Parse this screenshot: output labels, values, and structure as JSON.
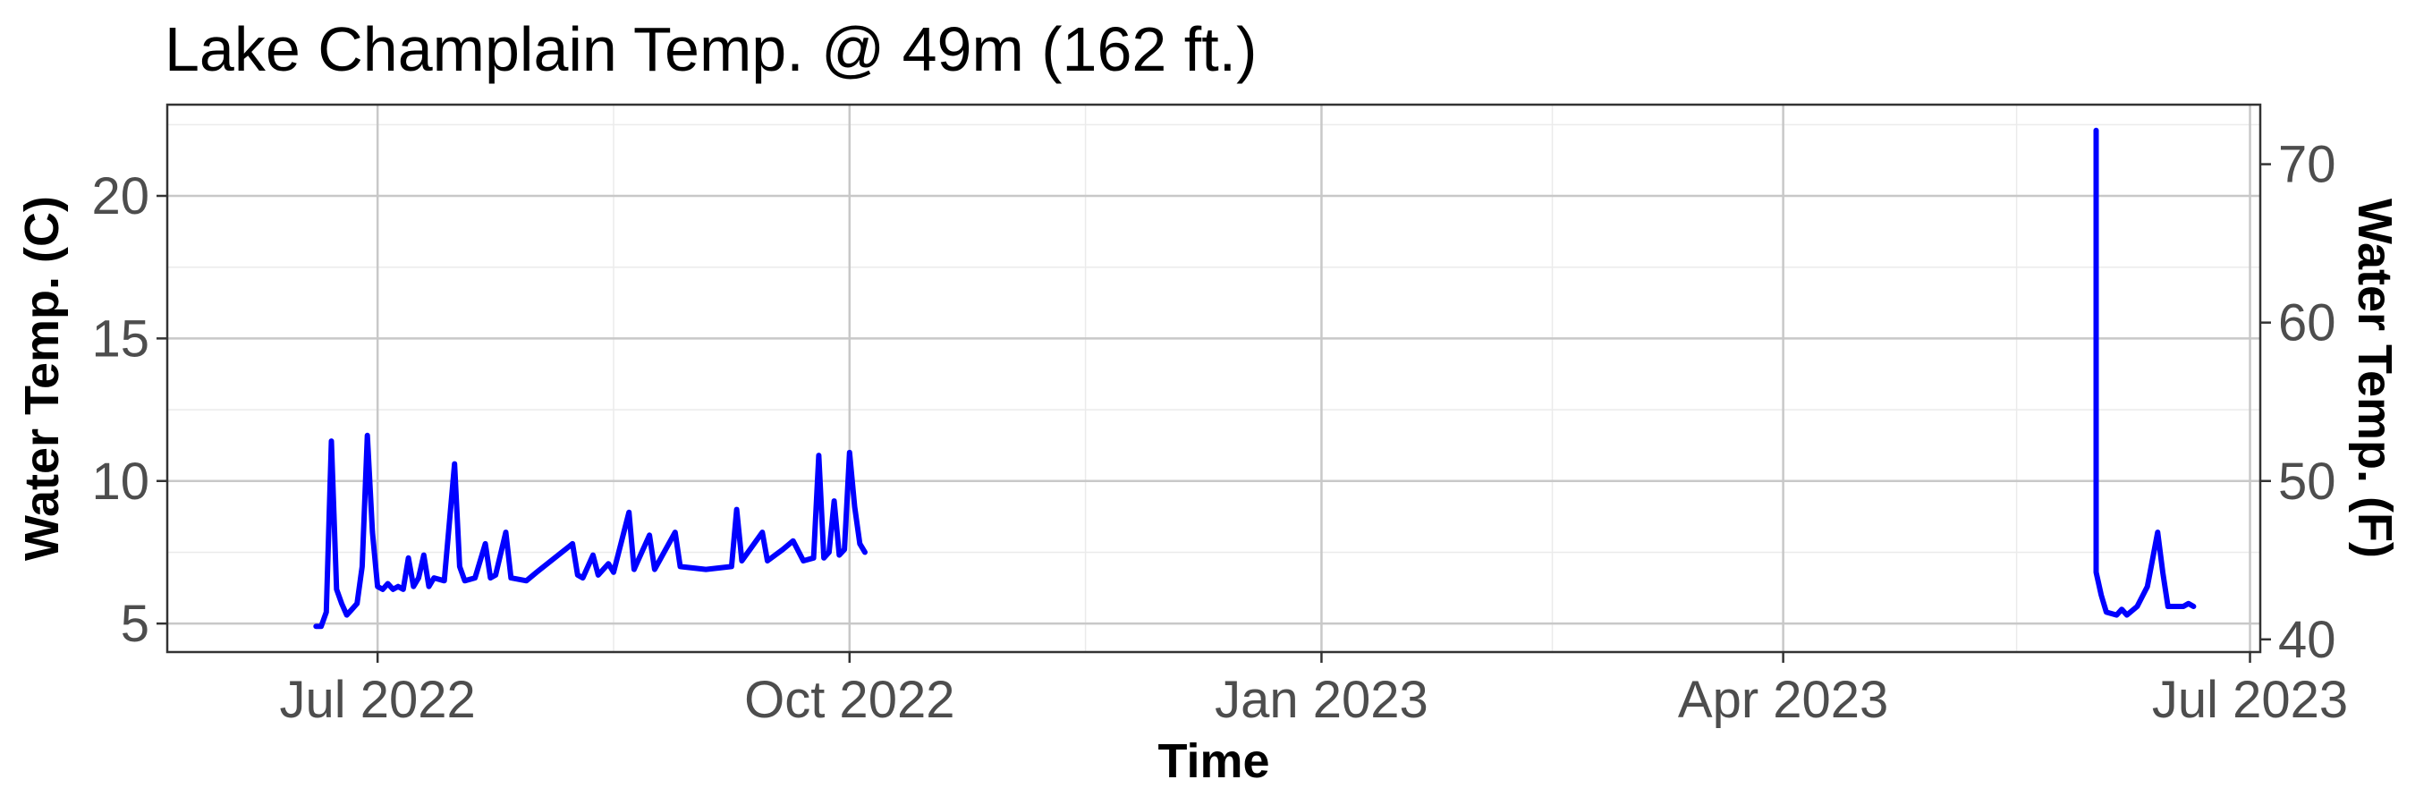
{
  "chart_data": {
    "type": "line",
    "title": "Lake Champlain Temp. @ 49m (162 ft.)",
    "xlabel": "Time",
    "ylabel": "Water Temp. (C)",
    "y2label": "Water Temp. (F)",
    "x_ticks": [
      {
        "date": "2022-07-01",
        "label": "Jul 2022"
      },
      {
        "date": "2022-10-01",
        "label": "Oct 2022"
      },
      {
        "date": "2023-01-01",
        "label": "Jan 2023"
      },
      {
        "date": "2023-04-01",
        "label": "Apr 2023"
      },
      {
        "date": "2023-07-01",
        "label": "Jul 2023"
      }
    ],
    "xlim": [
      "2022-05-21",
      "2023-07-03"
    ],
    "y_ticks": [
      5,
      10,
      15,
      20
    ],
    "ylim": [
      4.0,
      23.2
    ],
    "y2_ticks": [
      40,
      50,
      60,
      70
    ],
    "grid": true,
    "series_color": "#0000ff",
    "series": [
      {
        "segments": [
          [
            [
              "2022-06-19",
              4.9
            ],
            [
              "2022-06-20",
              4.9
            ],
            [
              "2022-06-21",
              5.4
            ],
            [
              "2022-06-22",
              11.4
            ],
            [
              "2022-06-23",
              6.2
            ],
            [
              "2022-06-24",
              5.7
            ],
            [
              "2022-06-25",
              5.3
            ],
            [
              "2022-06-26",
              5.5
            ],
            [
              "2022-06-27",
              5.7
            ],
            [
              "2022-06-28",
              7.0
            ],
            [
              "2022-06-29",
              11.6
            ],
            [
              "2022-06-30",
              8.2
            ],
            [
              "2022-07-01",
              6.3
            ],
            [
              "2022-07-02",
              6.2
            ],
            [
              "2022-07-03",
              6.4
            ],
            [
              "2022-07-04",
              6.2
            ],
            [
              "2022-07-05",
              6.3
            ],
            [
              "2022-07-06",
              6.2
            ],
            [
              "2022-07-07",
              7.3
            ],
            [
              "2022-07-08",
              6.3
            ],
            [
              "2022-07-09",
              6.6
            ],
            [
              "2022-07-10",
              7.4
            ],
            [
              "2022-07-11",
              6.3
            ],
            [
              "2022-07-12",
              6.6
            ],
            [
              "2022-07-14",
              6.5
            ],
            [
              "2022-07-16",
              10.6
            ],
            [
              "2022-07-17",
              7.0
            ],
            [
              "2022-07-18",
              6.5
            ],
            [
              "2022-07-20",
              6.6
            ],
            [
              "2022-07-22",
              7.8
            ],
            [
              "2022-07-23",
              6.6
            ],
            [
              "2022-07-24",
              6.7
            ],
            [
              "2022-07-26",
              8.2
            ],
            [
              "2022-07-27",
              6.6
            ],
            [
              "2022-07-30",
              6.5
            ],
            [
              "2022-08-01",
              6.8
            ],
            [
              "2022-08-08",
              7.8
            ],
            [
              "2022-08-09",
              6.7
            ],
            [
              "2022-08-10",
              6.6
            ],
            [
              "2022-08-12",
              7.4
            ],
            [
              "2022-08-13",
              6.7
            ],
            [
              "2022-08-15",
              7.1
            ],
            [
              "2022-08-16",
              6.8
            ],
            [
              "2022-08-19",
              8.9
            ],
            [
              "2022-08-20",
              6.9
            ],
            [
              "2022-08-23",
              8.1
            ],
            [
              "2022-08-24",
              6.9
            ],
            [
              "2022-08-28",
              8.2
            ],
            [
              "2022-08-29",
              7.0
            ],
            [
              "2022-09-03",
              6.9
            ],
            [
              "2022-09-08",
              7.0
            ],
            [
              "2022-09-09",
              9.0
            ],
            [
              "2022-09-10",
              7.2
            ],
            [
              "2022-09-14",
              8.2
            ],
            [
              "2022-09-15",
              7.2
            ],
            [
              "2022-09-18",
              7.6
            ],
            [
              "2022-09-20",
              7.9
            ],
            [
              "2022-09-22",
              7.2
            ],
            [
              "2022-09-24",
              7.3
            ],
            [
              "2022-09-25",
              10.9
            ],
            [
              "2022-09-26",
              7.3
            ],
            [
              "2022-09-27",
              7.5
            ],
            [
              "2022-09-28",
              9.3
            ],
            [
              "2022-09-29",
              7.4
            ],
            [
              "2022-09-30",
              7.6
            ],
            [
              "2022-10-01",
              11.0
            ],
            [
              "2022-10-02",
              9.1
            ],
            [
              "2022-10-03",
              7.8
            ],
            [
              "2022-10-04",
              7.5
            ]
          ],
          [
            [
              "2023-06-01",
              22.3
            ],
            [
              "2023-06-01",
              6.8
            ],
            [
              "2023-06-02",
              6.0
            ],
            [
              "2023-06-03",
              5.4
            ],
            [
              "2023-06-05",
              5.3
            ],
            [
              "2023-06-06",
              5.5
            ],
            [
              "2023-06-07",
              5.3
            ],
            [
              "2023-06-09",
              5.6
            ],
            [
              "2023-06-11",
              6.3
            ],
            [
              "2023-06-13",
              8.2
            ],
            [
              "2023-06-14",
              6.8
            ],
            [
              "2023-06-15",
              5.6
            ],
            [
              "2023-06-18",
              5.6
            ],
            [
              "2023-06-19",
              5.7
            ],
            [
              "2023-06-20",
              5.6
            ]
          ]
        ]
      }
    ]
  }
}
